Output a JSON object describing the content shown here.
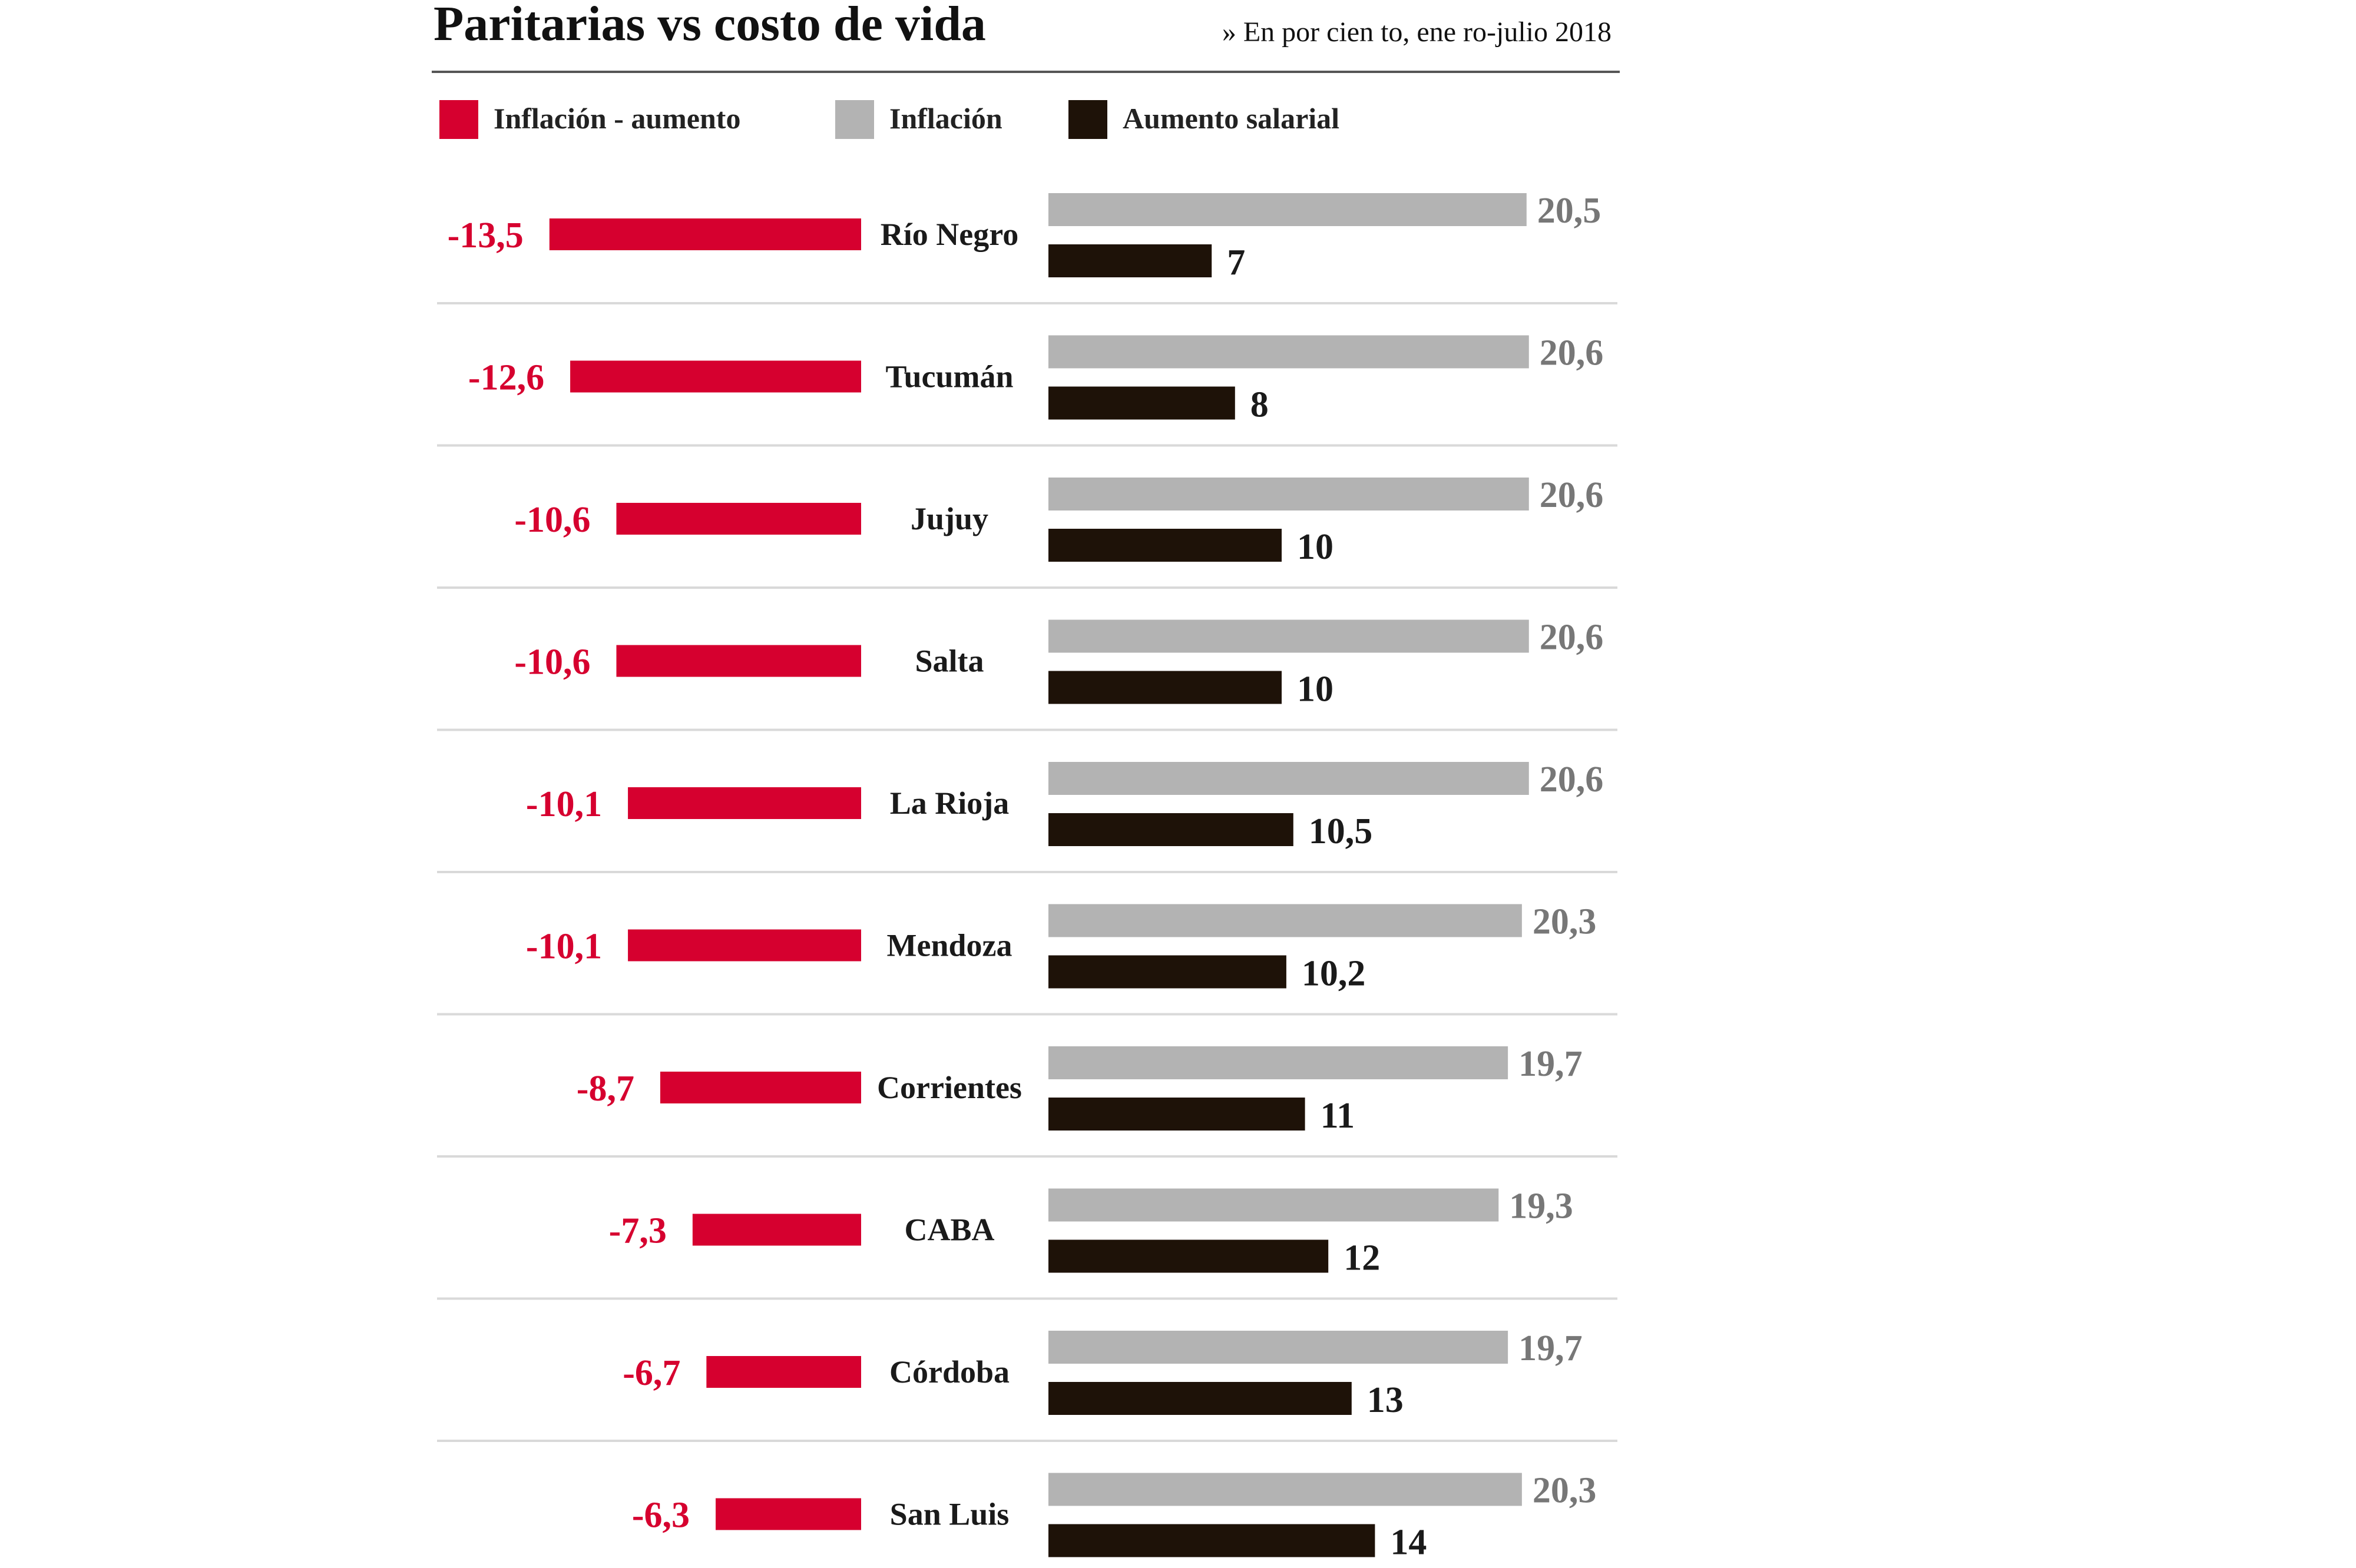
{
  "chart_data": {
    "type": "bar",
    "title": "Paritarias vs costo de vida",
    "subtitle": "» En por cien to, ene ro-julio 2018",
    "legend": [
      {
        "name": "Inflación - aumento",
        "color": "#d6002f"
      },
      {
        "name": "Inflación",
        "color": "#b3b3b3"
      },
      {
        "name": "Aumento salarial",
        "color": "#1e1208"
      }
    ],
    "categories": [
      "Río Negro",
      "Tucumán",
      "Jujuy",
      "Salta",
      "La Rioja",
      "Mendoza",
      "Corrientes",
      "CABA",
      "Córdoba",
      "San Luis"
    ],
    "series": [
      {
        "name": "Inflación - aumento",
        "values": [
          -13.5,
          -12.6,
          -10.6,
          -10.6,
          -10.1,
          -10.1,
          -8.7,
          -7.3,
          -6.7,
          -6.3
        ],
        "labels": [
          "-13,5",
          "-12,6",
          "-10,6",
          "-10,6",
          "-10,1",
          "-10,1",
          "-8,7",
          "-7,3",
          "-6,7",
          "-6,3"
        ]
      },
      {
        "name": "Inflación",
        "values": [
          20.5,
          20.6,
          20.6,
          20.6,
          20.6,
          20.3,
          19.7,
          19.3,
          19.7,
          20.3
        ],
        "labels": [
          "20,5",
          "20,6",
          "20,6",
          "20,6",
          "20,6",
          "20,3",
          "19,7",
          "19,3",
          "19,7",
          "20,3"
        ]
      },
      {
        "name": "Aumento salarial",
        "values": [
          7,
          8,
          10,
          10,
          10.5,
          10.2,
          11,
          12,
          13,
          14
        ],
        "labels": [
          "7",
          "8",
          "10",
          "10",
          "10,5",
          "10,2",
          "11",
          "12",
          "13",
          "14"
        ]
      }
    ],
    "colors": {
      "diff": "#d6002f",
      "inflation": "#b3b3b3",
      "wage": "#1e1208",
      "inflation_label": "#777777",
      "wage_label": "#1a1a1a",
      "rule": "#555555",
      "separator": "#d9d9d9"
    },
    "legend_position": "top-left",
    "grid": false
  }
}
